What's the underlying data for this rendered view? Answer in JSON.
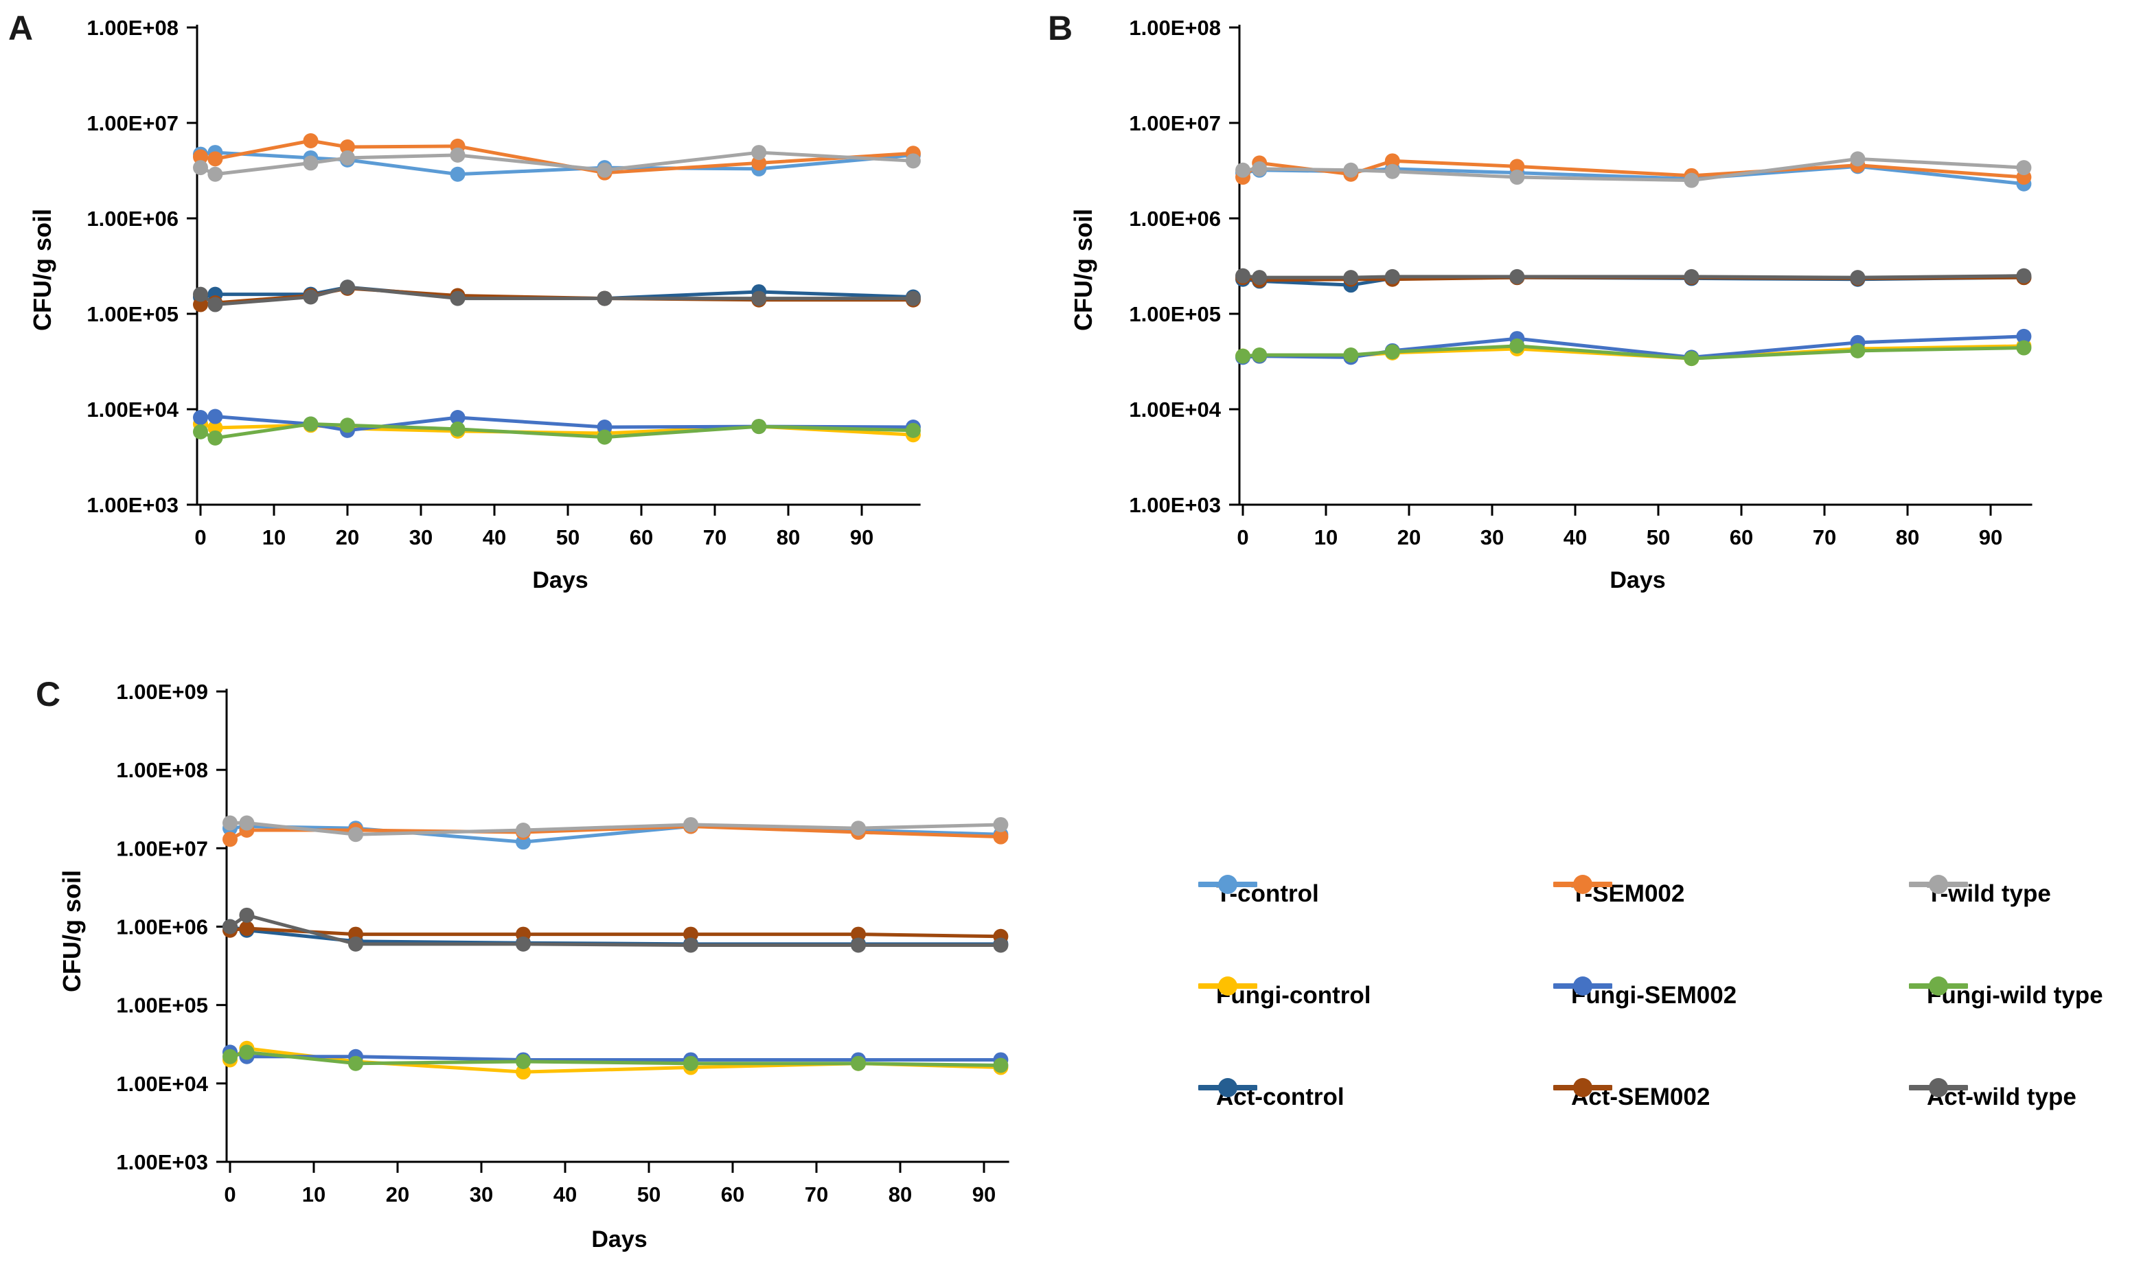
{
  "figure": {
    "title": "",
    "y_axis_label": "CFU/g soil",
    "x_axis_label": "Days"
  },
  "legend": {
    "rows": [
      [
        {
          "label": "T-control",
          "color": "#5B9BD5"
        },
        {
          "label": "T-SEM002",
          "color": "#ED7D31"
        },
        {
          "label": "T-wild type",
          "color": "#A5A5A5"
        }
      ],
      [
        {
          "label": "Fungi-control",
          "color": "#FFC000"
        },
        {
          "label": "Fungi-SEM002",
          "color": "#4472C4"
        },
        {
          "label": "Fungi-wild type",
          "color": "#70AD47"
        }
      ],
      [
        {
          "label": "Act-control",
          "color": "#255E91"
        },
        {
          "label": "Act-SEM002",
          "color": "#9E480E"
        },
        {
          "label": "Act-wild type",
          "color": "#636363"
        }
      ]
    ]
  },
  "chart_data": [
    {
      "panel_label": "A",
      "type": "line",
      "x_label": "Days",
      "y_label": "CFU/g soil",
      "y_scale": "log10",
      "ylim": [
        1000,
        100000000
      ],
      "y_min_exp": 3,
      "y_max_exp": 8,
      "grid": false,
      "y_ticks": [
        {
          "exp": 8,
          "label": "1.00E+08"
        },
        {
          "exp": 7,
          "label": "1.00E+07"
        },
        {
          "exp": 6,
          "label": "1.00E+06"
        },
        {
          "exp": 5,
          "label": "1.00E+05"
        },
        {
          "exp": 4,
          "label": "1.00E+04"
        },
        {
          "exp": 3,
          "label": "1.00E+03"
        }
      ],
      "x_ticks": [
        0,
        10,
        20,
        30,
        40,
        50,
        60,
        70,
        80,
        90
      ],
      "x_max": 98,
      "x": [
        0,
        2,
        15,
        20,
        35,
        55,
        76,
        97
      ],
      "series": [
        {
          "name": "T-control",
          "color": "#5B9BD5",
          "values": [
            4700000,
            4900000,
            4300000,
            4100000,
            2900000,
            3400000,
            3300000,
            4600000
          ]
        },
        {
          "name": "T-SEM002",
          "color": "#ED7D31",
          "values": [
            4400000,
            4200000,
            6500000,
            5600000,
            5700000,
            3000000,
            3800000,
            4800000
          ]
        },
        {
          "name": "T-wild type",
          "color": "#A5A5A5",
          "values": [
            3400000,
            2900000,
            3800000,
            4300000,
            4600000,
            3200000,
            4900000,
            4000000
          ]
        },
        {
          "name": "Fungi-control",
          "color": "#FFC000",
          "values": [
            7000,
            6400,
            6800,
            6300,
            5900,
            5600,
            6600,
            5400
          ]
        },
        {
          "name": "Fungi-SEM002",
          "color": "#4472C4",
          "values": [
            8200,
            8400,
            7000,
            6000,
            8200,
            6500,
            6600,
            6500
          ]
        },
        {
          "name": "Fungi-wild type",
          "color": "#70AD47",
          "values": [
            5800,
            5000,
            7000,
            6800,
            6200,
            5100,
            6600,
            6000
          ]
        },
        {
          "name": "Act-control",
          "color": "#255E91",
          "values": [
            150000,
            160000,
            160000,
            190000,
            150000,
            145000,
            170000,
            150000
          ]
        },
        {
          "name": "Act-SEM002",
          "color": "#9E480E",
          "values": [
            125000,
            130000,
            155000,
            185000,
            155000,
            145000,
            140000,
            140000
          ]
        },
        {
          "name": "Act-wild type",
          "color": "#636363",
          "values": [
            160000,
            125000,
            150000,
            190000,
            145000,
            145000,
            145000,
            145000
          ]
        }
      ]
    },
    {
      "panel_label": "B",
      "type": "line",
      "x_label": "Days",
      "y_label": "CFU/g soil",
      "y_scale": "log10",
      "ylim": [
        1000,
        100000000
      ],
      "y_min_exp": 3,
      "y_max_exp": 8,
      "grid": false,
      "y_ticks": [
        {
          "exp": 8,
          "label": "1.00E+08"
        },
        {
          "exp": 7,
          "label": "1.00E+07"
        },
        {
          "exp": 6,
          "label": "1.00E+06"
        },
        {
          "exp": 5,
          "label": "1.00E+05"
        },
        {
          "exp": 4,
          "label": "1.00E+04"
        },
        {
          "exp": 3,
          "label": "1.00E+03"
        }
      ],
      "x_ticks": [
        0,
        10,
        20,
        30,
        40,
        50,
        60,
        70,
        80,
        90
      ],
      "x_max": 95,
      "x": [
        0,
        2,
        13,
        18,
        33,
        54,
        74,
        94
      ],
      "series": [
        {
          "name": "T-control",
          "color": "#5B9BD5",
          "values": [
            3000000,
            3200000,
            3100000,
            3300000,
            3000000,
            2600000,
            3500000,
            2300000
          ]
        },
        {
          "name": "T-SEM002",
          "color": "#ED7D31",
          "values": [
            2700000,
            3800000,
            2900000,
            4000000,
            3500000,
            2800000,
            3600000,
            2700000
          ]
        },
        {
          "name": "T-wild type",
          "color": "#A5A5A5",
          "values": [
            3200000,
            3300000,
            3200000,
            3100000,
            2700000,
            2500000,
            4200000,
            3400000
          ]
        },
        {
          "name": "Fungi-control",
          "color": "#FFC000",
          "values": [
            36000,
            36000,
            36000,
            39000,
            43000,
            34000,
            43000,
            46000
          ]
        },
        {
          "name": "Fungi-SEM002",
          "color": "#4472C4",
          "values": [
            35000,
            36000,
            35000,
            41000,
            55000,
            35000,
            50000,
            58000
          ]
        },
        {
          "name": "Fungi-wild type",
          "color": "#70AD47",
          "values": [
            36000,
            37000,
            37000,
            40000,
            46000,
            34000,
            41000,
            44000
          ]
        },
        {
          "name": "Act-control",
          "color": "#255E91",
          "values": [
            230000,
            220000,
            200000,
            235000,
            240000,
            235000,
            230000,
            240000
          ]
        },
        {
          "name": "Act-SEM002",
          "color": "#9E480E",
          "values": [
            240000,
            225000,
            230000,
            230000,
            240000,
            240000,
            235000,
            240000
          ]
        },
        {
          "name": "Act-wild type",
          "color": "#636363",
          "values": [
            250000,
            240000,
            240000,
            245000,
            245000,
            245000,
            240000,
            250000
          ]
        }
      ]
    },
    {
      "panel_label": "C",
      "type": "line",
      "x_label": "Days",
      "y_label": "CFU/g soil",
      "y_scale": "log10",
      "ylim": [
        1000,
        1000000000
      ],
      "y_min_exp": 3,
      "y_max_exp": 9,
      "grid": false,
      "y_ticks": [
        {
          "exp": 9,
          "label": "1.00E+09"
        },
        {
          "exp": 8,
          "label": "1.00E+08"
        },
        {
          "exp": 7,
          "label": "1.00E+07"
        },
        {
          "exp": 6,
          "label": "1.00E+06"
        },
        {
          "exp": 5,
          "label": "1.00E+05"
        },
        {
          "exp": 4,
          "label": "1.00E+04"
        },
        {
          "exp": 3,
          "label": "1.00E+03"
        }
      ],
      "x_ticks": [
        0,
        10,
        20,
        30,
        40,
        50,
        60,
        70,
        80,
        90
      ],
      "x_max": 93,
      "x": [
        0,
        2,
        15,
        35,
        55,
        75,
        92
      ],
      "series": [
        {
          "name": "T-control",
          "color": "#5B9BD5",
          "values": [
            18000000,
            19000000,
            18000000,
            12000000,
            19000000,
            17000000,
            15000000
          ]
        },
        {
          "name": "T-SEM002",
          "color": "#ED7D31",
          "values": [
            13000000,
            17000000,
            17000000,
            16000000,
            19000000,
            16000000,
            14000000
          ]
        },
        {
          "name": "T-wild type",
          "color": "#A5A5A5",
          "values": [
            21000000,
            21000000,
            15000000,
            17000000,
            20000000,
            18000000,
            20000000
          ]
        },
        {
          "name": "Fungi-control",
          "color": "#FFC000",
          "values": [
            20000,
            28000,
            19000,
            14000,
            16000,
            18000,
            16000
          ]
        },
        {
          "name": "Fungi-SEM002",
          "color": "#4472C4",
          "values": [
            25000,
            22000,
            22000,
            20000,
            20000,
            20000,
            20000
          ]
        },
        {
          "name": "Fungi-wild type",
          "color": "#70AD47",
          "values": [
            22000,
            25000,
            18000,
            19000,
            18000,
            18000,
            17000
          ]
        },
        {
          "name": "Act-control",
          "color": "#255E91",
          "values": [
            1000000,
            900000,
            650000,
            620000,
            600000,
            600000,
            600000
          ]
        },
        {
          "name": "Act-SEM002",
          "color": "#9E480E",
          "values": [
            900000,
            950000,
            800000,
            800000,
            800000,
            800000,
            750000
          ]
        },
        {
          "name": "Act-wild type",
          "color": "#636363",
          "values": [
            1000000,
            1400000,
            600000,
            600000,
            580000,
            580000,
            580000
          ]
        }
      ]
    }
  ]
}
